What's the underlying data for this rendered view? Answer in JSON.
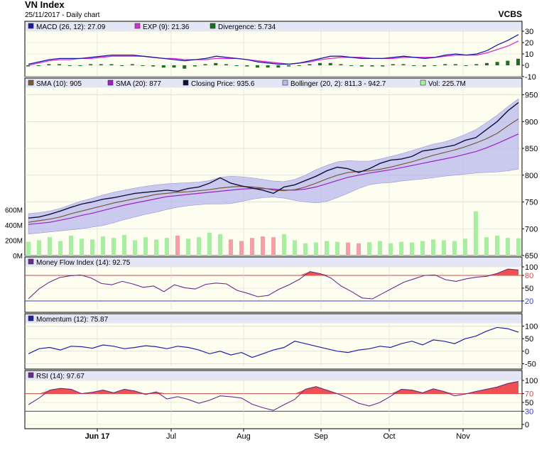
{
  "header": {
    "title": "VN Index",
    "subtitle": "25/11/2017 - Daily chart",
    "brand": "VCBS"
  },
  "colors": {
    "panel_bg": "#fefef0",
    "legend_bg": "#e4e6f6",
    "grid": "#d4d4d4",
    "macd": "#1a1aa6",
    "exp": "#d52cd5",
    "divergence": "#1e6e1e",
    "sma10": "#7a5a3a",
    "sma20": "#a020c8",
    "close": "#10103a",
    "bollinger": "#b7b8ec",
    "vol_up": "#a6eea0",
    "vol_down": "#f2a0a6",
    "mfi": "#6a2a8a",
    "fill_hot": "#f05050",
    "momentum": "#2020a8",
    "rsi": "#6a2a8a",
    "ref_red": "#c84a4a",
    "ref_blue": "#3a3ad0"
  },
  "x_axis": {
    "labels": [
      "Jun 17",
      "Jul",
      "Aug",
      "Sep",
      "Oct",
      "Nov"
    ]
  },
  "chart_data": [
    {
      "type": "line",
      "panel": "macd",
      "legend": [
        {
          "label": "MACD (26, 12): 27.09",
          "color": "macd"
        },
        {
          "label": "EXP (9): 21.36",
          "color": "exp"
        },
        {
          "label": "Divergence: 5.734",
          "color": "divergence"
        }
      ],
      "yticks": [
        "30",
        "20",
        "10",
        "0",
        "-10"
      ],
      "ylim": [
        -10,
        30
      ],
      "series": [
        {
          "key": "macd",
          "values": [
            1,
            3,
            5,
            6,
            6,
            6,
            7,
            8,
            9,
            9,
            9,
            8,
            7,
            6,
            5,
            4,
            5,
            6,
            8,
            7,
            6,
            5,
            3,
            2,
            1,
            1,
            2,
            4,
            6,
            8,
            8,
            7,
            6,
            6,
            6,
            7,
            8,
            7,
            6,
            7,
            9,
            10,
            9,
            10,
            13,
            18,
            22,
            27.09
          ]
        },
        {
          "key": "exp",
          "values": [
            0,
            2,
            4,
            5,
            5,
            6,
            6,
            7,
            8,
            8,
            8,
            8,
            7,
            6,
            6,
            5,
            5,
            5,
            6,
            6,
            6,
            5,
            4,
            3,
            2,
            1,
            2,
            3,
            5,
            6,
            7,
            7,
            7,
            6,
            6,
            6,
            7,
            7,
            7,
            7,
            8,
            9,
            9,
            9,
            11,
            14,
            17,
            21.36
          ]
        },
        {
          "key": "divergence",
          "values": [
            -1,
            0,
            1,
            1,
            0,
            0,
            1,
            1,
            1,
            0,
            1,
            0,
            -1,
            -2,
            -2,
            -3,
            -1,
            1,
            2,
            1,
            0,
            -1,
            -2,
            -2,
            -2,
            -1,
            0,
            1,
            2,
            2,
            1,
            0,
            -1,
            -1,
            -1,
            1,
            1,
            0,
            -1,
            0,
            1,
            1,
            0,
            1,
            2,
            3,
            4,
            5.734
          ]
        }
      ]
    },
    {
      "type": "line",
      "panel": "price",
      "legend": [
        {
          "label": "SMA (10): 905",
          "color": "sma10"
        },
        {
          "label": "SMA (20): 877",
          "color": "sma20"
        },
        {
          "label": "Closing Price: 935.6",
          "color": "close"
        },
        {
          "label": "Bollinger (20, 2): 811.3 - 942.7",
          "color": "bollinger"
        },
        {
          "label": "Vol: 225.7M",
          "color": "vol_up"
        }
      ],
      "yticks": [
        "950",
        "900",
        "850",
        "800",
        "750",
        "700",
        "650"
      ],
      "ylim": [
        650,
        960
      ],
      "volume_ticks": [
        "600M",
        "400M",
        "200M",
        "0M"
      ],
      "volume_lim": [
        0,
        650
      ],
      "series": [
        {
          "key": "close",
          "values": [
            720,
            722,
            727,
            733,
            740,
            746,
            750,
            755,
            758,
            762,
            766,
            768,
            770,
            772,
            770,
            775,
            778,
            785,
            795,
            785,
            780,
            776,
            772,
            766,
            778,
            782,
            790,
            798,
            808,
            815,
            812,
            805,
            812,
            822,
            828,
            830,
            835,
            845,
            848,
            852,
            856,
            865,
            870,
            885,
            900,
            920,
            935.6
          ]
        },
        {
          "key": "sma10",
          "values": [
            712,
            715,
            718,
            722,
            728,
            733,
            738,
            743,
            748,
            752,
            756,
            760,
            764,
            766,
            768,
            769,
            771,
            773,
            776,
            778,
            779,
            778,
            776,
            772,
            771,
            773,
            778,
            785,
            793,
            800,
            805,
            807,
            808,
            811,
            815,
            820,
            825,
            831,
            837,
            842,
            847,
            853,
            860,
            868,
            878,
            892,
            905
          ]
        },
        {
          "key": "sma20",
          "values": [
            708,
            710,
            712,
            716,
            720,
            725,
            729,
            734,
            739,
            744,
            748,
            752,
            756,
            760,
            762,
            764,
            766,
            768,
            770,
            772,
            774,
            775,
            775,
            774,
            772,
            772,
            774,
            778,
            784,
            790,
            796,
            800,
            804,
            807,
            810,
            814,
            818,
            822,
            826,
            830,
            834,
            839,
            844,
            851,
            859,
            868,
            877
          ]
        },
        {
          "key": "boll_upper",
          "values": [
            728,
            730,
            733,
            738,
            745,
            752,
            757,
            763,
            768,
            772,
            776,
            779,
            782,
            784,
            785,
            786,
            787,
            790,
            796,
            798,
            797,
            795,
            792,
            789,
            788,
            792,
            800,
            810,
            818,
            825,
            827,
            826,
            826,
            830,
            835,
            840,
            846,
            852,
            858,
            862,
            868,
            876,
            885,
            898,
            912,
            928,
            942.7
          ]
        },
        {
          "key": "boll_lower",
          "values": [
            690,
            692,
            694,
            696,
            698,
            700,
            703,
            706,
            711,
            717,
            722,
            727,
            731,
            736,
            740,
            743,
            745,
            746,
            746,
            747,
            751,
            755,
            758,
            759,
            757,
            753,
            750,
            748,
            751,
            758,
            766,
            775,
            782,
            785,
            786,
            789,
            791,
            793,
            795,
            798,
            800,
            802,
            804,
            805,
            806,
            808,
            811.3
          ]
        },
        {
          "key": "volume",
          "values": [
            180,
            200,
            240,
            190,
            260,
            220,
            210,
            250,
            230,
            270,
            200,
            240,
            210,
            230,
            260,
            220,
            240,
            300,
            280,
            210,
            190,
            230,
            250,
            240,
            280,
            200,
            160,
            170,
            190,
            180,
            170,
            160,
            175,
            190,
            160,
            180,
            170,
            190,
            210,
            200,
            190,
            220,
            580,
            240,
            260,
            230,
            225.7
          ]
        }
      ]
    },
    {
      "type": "line",
      "panel": "mfi",
      "legend": [
        {
          "label": "Money Flow Index (14): 92.75",
          "color": "mfi"
        }
      ],
      "yticks": [
        "100",
        "80",
        "50",
        "20"
      ],
      "ylim": [
        0,
        100
      ],
      "reference_lines": [
        80,
        20
      ],
      "series": [
        {
          "key": "mfi",
          "values": [
            25,
            48,
            64,
            75,
            79,
            81,
            74,
            61,
            58,
            66,
            60,
            52,
            55,
            42,
            58,
            51,
            48,
            59,
            62,
            60,
            45,
            38,
            30,
            33,
            47,
            58,
            71,
            89,
            84,
            74,
            55,
            42,
            27,
            25,
            38,
            51,
            64,
            72,
            80,
            81,
            70,
            66,
            72,
            76,
            78,
            85,
            95,
            92.75
          ]
        }
      ]
    },
    {
      "type": "line",
      "panel": "momentum",
      "legend": [
        {
          "label": "Momentum (12): 75.87",
          "color": "momentum"
        }
      ],
      "yticks": [
        "100",
        "50",
        "0",
        "-50"
      ],
      "ylim": [
        -60,
        110
      ],
      "series": [
        {
          "key": "momentum",
          "values": [
            -10,
            10,
            15,
            5,
            20,
            18,
            12,
            25,
            20,
            10,
            15,
            22,
            18,
            10,
            20,
            15,
            5,
            -10,
            0,
            -15,
            -5,
            -25,
            -10,
            5,
            15,
            40,
            30,
            20,
            10,
            0,
            -5,
            5,
            10,
            20,
            15,
            30,
            40,
            25,
            45,
            40,
            30,
            50,
            60,
            80,
            95,
            90,
            75.87
          ]
        }
      ]
    },
    {
      "type": "line",
      "panel": "rsi",
      "legend": [
        {
          "label": "RSI (14): 97.67",
          "color": "rsi"
        }
      ],
      "yticks": [
        "100",
        "70",
        "50",
        "30",
        "0"
      ],
      "ylim": [
        0,
        100
      ],
      "reference_lines": [
        70,
        30
      ],
      "series": [
        {
          "key": "rsi",
          "values": [
            45,
            60,
            78,
            82,
            80,
            70,
            73,
            78,
            72,
            80,
            76,
            68,
            74,
            58,
            63,
            57,
            48,
            55,
            65,
            63,
            60,
            46,
            38,
            32,
            45,
            57,
            80,
            86,
            78,
            70,
            60,
            48,
            42,
            50,
            64,
            80,
            78,
            72,
            81,
            75,
            65,
            69,
            75,
            80,
            85,
            93,
            97.67
          ]
        }
      ]
    }
  ]
}
